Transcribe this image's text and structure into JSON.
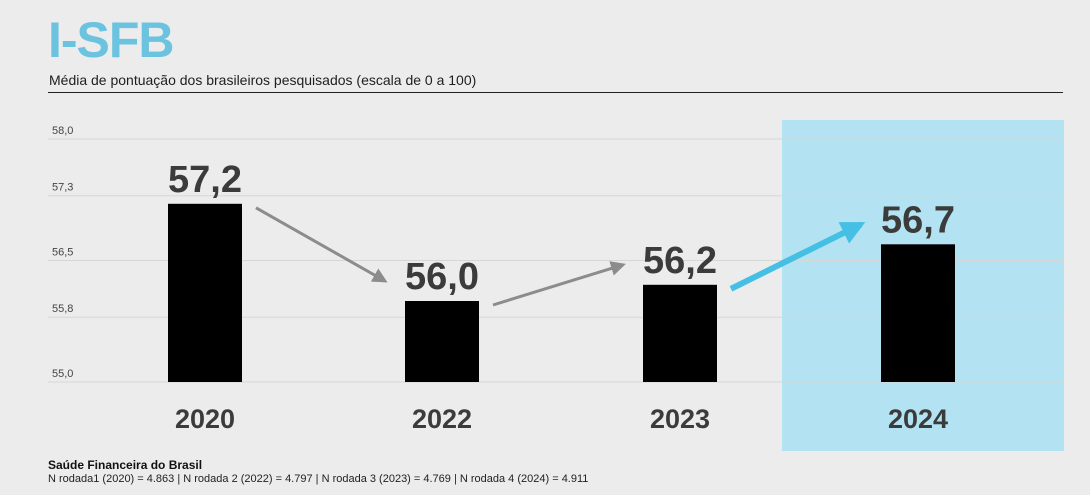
{
  "header": {
    "title": "I-SFB",
    "subtitle": "Média de pontuação dos brasileiros pesquisados (escala de 0 a 100)"
  },
  "footer": {
    "source_title": "Saúde Financeira do Brasil",
    "note": "N rodada1 (2020) = 4.863 | N rodada 2 (2022) = 4.797 | N rodada 3 (2023) = 4.769 | N rodada 4 (2024) = 4.911"
  },
  "chart_data": {
    "type": "bar",
    "categories": [
      "2020",
      "2022",
      "2023",
      "2024"
    ],
    "values": [
      57.2,
      56.0,
      56.2,
      56.7
    ],
    "data_labels": [
      "57,2",
      "56,0",
      "56,2",
      "56,7"
    ],
    "title": "I-SFB",
    "subtitle": "Média de pontuação dos brasileiros pesquisados (escala de 0 a 100)",
    "xlabel": "",
    "ylabel": "",
    "ylim": [
      55.0,
      58.0
    ],
    "yticks": [
      55.0,
      55.8,
      56.5,
      57.3,
      58.0
    ],
    "ytick_labels": [
      "55,0",
      "55,8",
      "56,5",
      "57,3",
      "58,0"
    ],
    "grid": true,
    "highlight_category": "2024",
    "colors": {
      "bar": "#000000",
      "highlight_panel": "#b3e3f2",
      "arrow_neutral": "#8c8c8c",
      "arrow_highlight": "#45bfe3",
      "value_label": "#3b3b3b",
      "grid": "#d6d6d6",
      "title": "#6bc3e0"
    }
  }
}
